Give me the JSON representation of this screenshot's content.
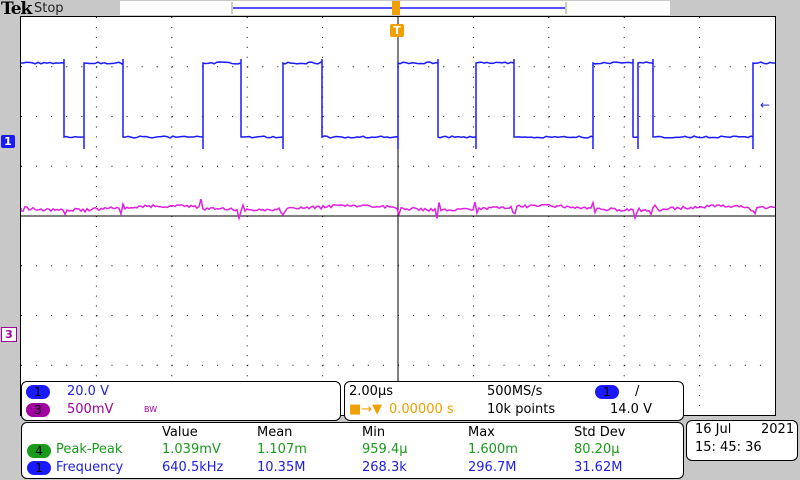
{
  "header": {
    "brand": "Tek",
    "status": "Stop"
  },
  "markers": {
    "ch1": "1",
    "ch3": "3",
    "trigger": "T"
  },
  "channels": [
    {
      "num": "1",
      "scale": "20.0 V",
      "color": "#1a1aff"
    },
    {
      "num": "3",
      "scale": "500mV",
      "bw": "BW",
      "color": "#a000a0"
    }
  ],
  "timebase": {
    "scale": "2.00µs",
    "sample_rate": "500MS/s",
    "trigger_pos": "0.00000 s",
    "record": "10k points",
    "trigger_ch": "1",
    "trigger_slope": "/",
    "trigger_level": "14.0 V"
  },
  "measurements": {
    "headers": [
      "Value",
      "Mean",
      "Min",
      "Max",
      "Std Dev"
    ],
    "rows": [
      {
        "ch": "4",
        "name": "Peak-Peak",
        "values": [
          "1.039mV",
          "1.107m",
          "959.4µ",
          "1.600m",
          "80.20µ"
        ]
      },
      {
        "ch": "1",
        "name": "Frequency",
        "values": [
          "640.5kHz",
          "10.35M",
          "268.3k",
          "296.7M",
          "31.62M"
        ]
      }
    ]
  },
  "datetime": {
    "date": "16 Jul",
    "year": "2021",
    "time": "15: 45: 36"
  }
}
